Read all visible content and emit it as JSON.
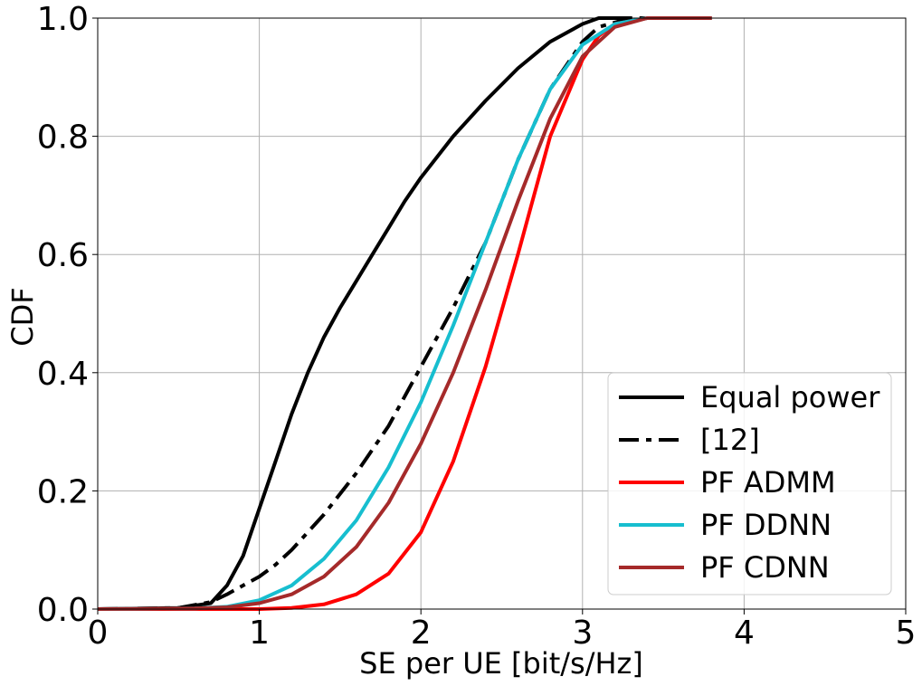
{
  "chart_data": {
    "type": "line",
    "title": "",
    "xlabel": "SE per UE [bit/s/Hz]",
    "ylabel": "CDF",
    "xlim": [
      0,
      5
    ],
    "ylim": [
      0,
      1
    ],
    "x_ticks": [
      "0",
      "1",
      "2",
      "3",
      "4",
      "5"
    ],
    "y_ticks": [
      "0.0",
      "0.2",
      "0.4",
      "0.6",
      "0.8",
      "1.0"
    ],
    "grid": true,
    "legend_position": "bottom-right",
    "series": [
      {
        "name": "Equal power",
        "color": "#000000",
        "style": "solid",
        "points": [
          [
            0,
            0
          ],
          [
            0.5,
            0.002
          ],
          [
            0.7,
            0.01
          ],
          [
            0.8,
            0.04
          ],
          [
            0.9,
            0.09
          ],
          [
            1.0,
            0.17
          ],
          [
            1.1,
            0.25
          ],
          [
            1.2,
            0.33
          ],
          [
            1.3,
            0.4
          ],
          [
            1.4,
            0.46
          ],
          [
            1.5,
            0.51
          ],
          [
            1.6,
            0.555
          ],
          [
            1.7,
            0.6
          ],
          [
            1.8,
            0.645
          ],
          [
            1.9,
            0.69
          ],
          [
            2.0,
            0.73
          ],
          [
            2.2,
            0.8
          ],
          [
            2.4,
            0.86
          ],
          [
            2.6,
            0.915
          ],
          [
            2.8,
            0.96
          ],
          [
            3.0,
            0.99
          ],
          [
            3.1,
            1.0
          ],
          [
            3.3,
            1.0
          ]
        ]
      },
      {
        "name": "[12]",
        "color": "#000000",
        "style": "dashdot",
        "points": [
          [
            0,
            0
          ],
          [
            0.5,
            0.002
          ],
          [
            0.7,
            0.012
          ],
          [
            0.8,
            0.025
          ],
          [
            0.9,
            0.04
          ],
          [
            1.0,
            0.055
          ],
          [
            1.1,
            0.075
          ],
          [
            1.2,
            0.1
          ],
          [
            1.4,
            0.16
          ],
          [
            1.6,
            0.23
          ],
          [
            1.8,
            0.31
          ],
          [
            2.0,
            0.41
          ],
          [
            2.2,
            0.51
          ],
          [
            2.4,
            0.62
          ],
          [
            2.6,
            0.76
          ],
          [
            2.8,
            0.88
          ],
          [
            3.0,
            0.96
          ],
          [
            3.1,
            0.985
          ],
          [
            3.3,
            1.0
          ],
          [
            3.5,
            1.0
          ]
        ]
      },
      {
        "name": "PF ADMM",
        "color": "#ff0000",
        "style": "solid",
        "points": [
          [
            0,
            0
          ],
          [
            1.0,
            0.0
          ],
          [
            1.2,
            0.002
          ],
          [
            1.4,
            0.008
          ],
          [
            1.6,
            0.025
          ],
          [
            1.8,
            0.06
          ],
          [
            2.0,
            0.13
          ],
          [
            2.2,
            0.25
          ],
          [
            2.4,
            0.41
          ],
          [
            2.6,
            0.6
          ],
          [
            2.7,
            0.7
          ],
          [
            2.8,
            0.8
          ],
          [
            3.0,
            0.93
          ],
          [
            3.1,
            0.97
          ],
          [
            3.2,
            0.99
          ],
          [
            3.4,
            1.0
          ],
          [
            3.8,
            1.0
          ]
        ]
      },
      {
        "name": "PF DDNN",
        "color": "#17becf",
        "style": "solid",
        "points": [
          [
            0,
            0
          ],
          [
            0.6,
            0.001
          ],
          [
            0.8,
            0.004
          ],
          [
            1.0,
            0.015
          ],
          [
            1.2,
            0.04
          ],
          [
            1.4,
            0.085
          ],
          [
            1.6,
            0.15
          ],
          [
            1.8,
            0.24
          ],
          [
            2.0,
            0.35
          ],
          [
            2.2,
            0.48
          ],
          [
            2.4,
            0.62
          ],
          [
            2.6,
            0.76
          ],
          [
            2.8,
            0.88
          ],
          [
            3.0,
            0.955
          ],
          [
            3.2,
            0.99
          ],
          [
            3.4,
            1.0
          ],
          [
            3.8,
            1.0
          ]
        ]
      },
      {
        "name": "PF CDNN",
        "color": "#a52a2a",
        "style": "solid",
        "points": [
          [
            0,
            0
          ],
          [
            0.6,
            0.001
          ],
          [
            0.8,
            0.003
          ],
          [
            1.0,
            0.01
          ],
          [
            1.2,
            0.025
          ],
          [
            1.4,
            0.055
          ],
          [
            1.6,
            0.105
          ],
          [
            1.8,
            0.18
          ],
          [
            2.0,
            0.28
          ],
          [
            2.2,
            0.4
          ],
          [
            2.4,
            0.54
          ],
          [
            2.6,
            0.69
          ],
          [
            2.8,
            0.83
          ],
          [
            3.0,
            0.935
          ],
          [
            3.2,
            0.985
          ],
          [
            3.4,
            1.0
          ],
          [
            3.8,
            1.0
          ]
        ]
      }
    ]
  }
}
